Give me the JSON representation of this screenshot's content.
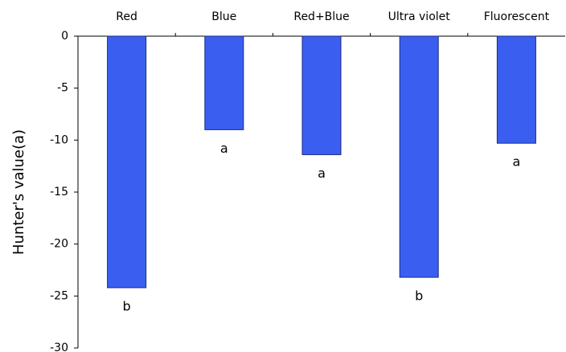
{
  "chart_data": {
    "type": "bar",
    "y_label": "Hunter's value(a)",
    "categories": [
      "Red",
      "Blue",
      "Red+Blue",
      "Ultra violet",
      "Fluorescent"
    ],
    "values": [
      -24.2,
      -9.0,
      -11.4,
      -23.2,
      -10.3
    ],
    "annotations": [
      "b",
      "a",
      "a",
      "b",
      "a"
    ],
    "color": "#3a5ff0",
    "ylim": [
      0,
      -30
    ],
    "yticks": [
      0,
      -5,
      -10,
      -15,
      -20,
      -25,
      -30
    ]
  }
}
